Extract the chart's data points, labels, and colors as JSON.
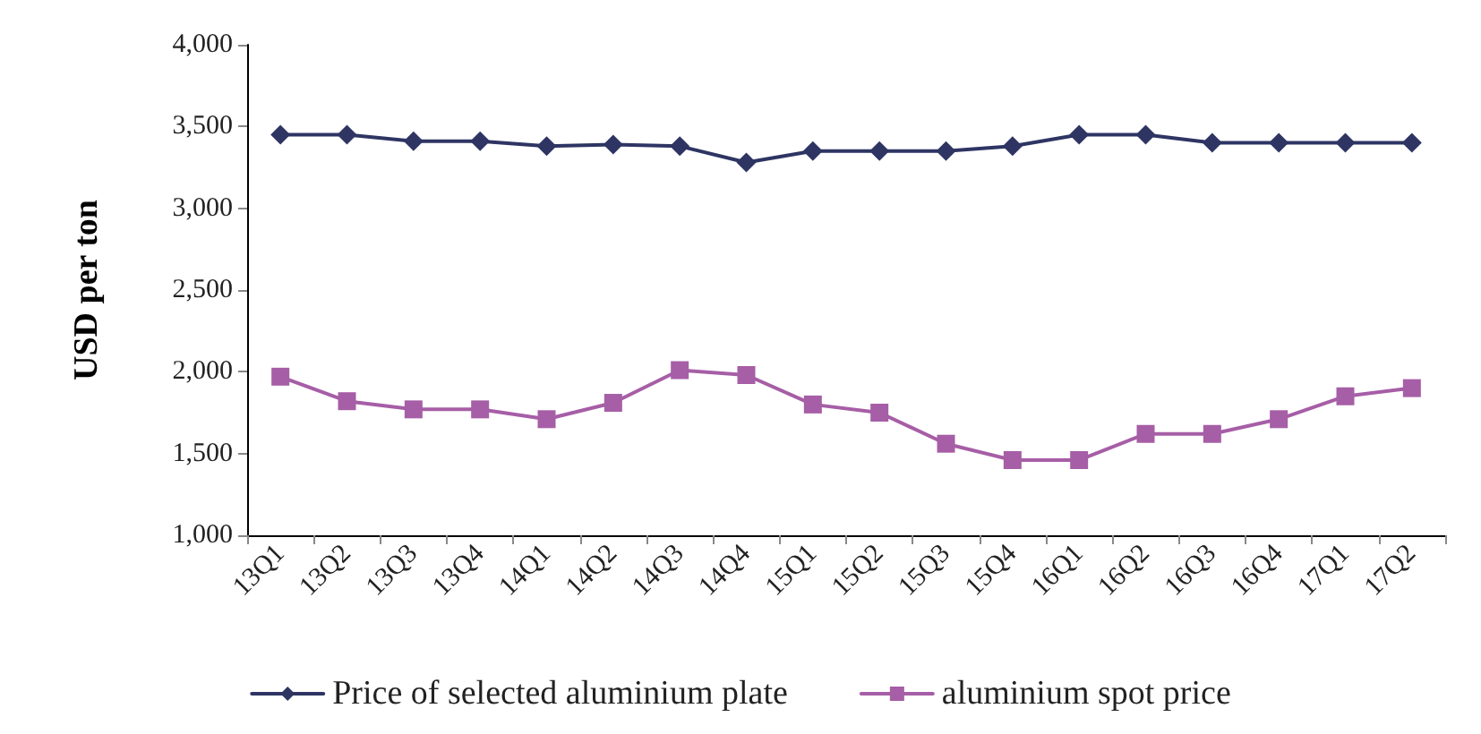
{
  "chart_data": {
    "type": "line",
    "ylabel": "USD per ton",
    "categories": [
      "13Q1",
      "13Q2",
      "13Q3",
      "13Q4",
      "14Q1",
      "14Q2",
      "14Q3",
      "14Q4",
      "15Q1",
      "15Q2",
      "15Q3",
      "15Q4",
      "16Q1",
      "16Q2",
      "16Q3",
      "16Q4",
      "17Q1",
      "17Q2"
    ],
    "series": [
      {
        "name": "Price of selected aluminium plate",
        "color": "#2e3563",
        "marker": "diamond",
        "values": [
          3450,
          3450,
          3410,
          3410,
          3380,
          3390,
          3380,
          3280,
          3350,
          3350,
          3350,
          3380,
          3450,
          3450,
          3400,
          3400,
          3400,
          3400
        ]
      },
      {
        "name": "aluminium spot price",
        "color": "#a65ea6",
        "marker": "square",
        "values": [
          1970,
          1820,
          1770,
          1770,
          1710,
          1810,
          2010,
          1980,
          1800,
          1750,
          1560,
          1460,
          1460,
          1620,
          1620,
          1710,
          1850,
          1900
        ]
      }
    ],
    "ylim": [
      1000,
      4000
    ],
    "yticks": [
      {
        "value": 1000,
        "label": "1,000"
      },
      {
        "value": 1500,
        "label": "1,500"
      },
      {
        "value": 2000,
        "label": "2,000"
      },
      {
        "value": 2500,
        "label": "2,500"
      },
      {
        "value": 3000,
        "label": "3,000"
      },
      {
        "value": 3500,
        "label": "3,500"
      },
      {
        "value": 4000,
        "label": "4,000"
      }
    ],
    "grid": false,
    "legend": "bottom",
    "line_style": "solid"
  }
}
